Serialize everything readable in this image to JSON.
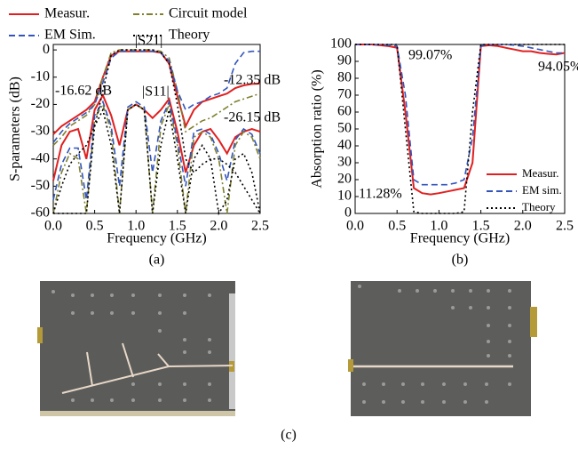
{
  "chart_data": [
    {
      "type": "line",
      "ylabel": "S-parameters (dB)",
      "xlabel": "Frequency (GHz)",
      "caption": "(a)",
      "x": [
        0,
        0.1,
        0.2,
        0.3,
        0.4,
        0.5,
        0.6,
        0.7,
        0.8,
        0.9,
        1.0,
        1.1,
        1.2,
        1.3,
        1.4,
        1.5,
        1.6,
        1.7,
        1.8,
        1.9,
        2.0,
        2.1,
        2.2,
        2.3,
        2.4,
        2.5
      ],
      "xlim": [
        0,
        2.5
      ],
      "ylim": [
        -60,
        2
      ],
      "xticks": [
        {
          "value": 0,
          "label": "0.0"
        },
        {
          "value": 0.5,
          "label": "0.5"
        },
        {
          "value": 1,
          "label": "1.0"
        },
        {
          "value": 1.5,
          "label": "1.5"
        },
        {
          "value": 2,
          "label": "2.0"
        },
        {
          "value": 2.5,
          "label": "2.5"
        }
      ],
      "yticks": [
        0,
        -10,
        -20,
        -30,
        -40,
        -50,
        -60
      ],
      "series": [
        {
          "name": "Measur.",
          "color": "#e02020",
          "dash": "solid",
          "values": [
            -31,
            -28,
            -26,
            -24,
            -22,
            -19,
            -10,
            -2,
            -0.5,
            -0.5,
            -0.5,
            -0.5,
            -0.5,
            -1,
            -5,
            -17,
            -28,
            -22,
            -19,
            -18,
            -17,
            -16,
            -14,
            -13,
            -12.5,
            -12.35
          ],
          "s11_values": [
            -48,
            -35,
            -30,
            -29,
            -40,
            -22,
            -16.62,
            -24,
            -35,
            -22,
            -20,
            -22,
            -25,
            -22,
            -18,
            -30,
            -45,
            -35,
            -30,
            -29,
            -33,
            -38,
            -32,
            -30,
            -29,
            -30
          ]
        },
        {
          "name": "Circuit model",
          "color": "#808030",
          "dash": "dashdot",
          "values": [
            -35,
            -32,
            -28,
            -26,
            -24,
            -20,
            -10,
            -1,
            0,
            0,
            0,
            0,
            0,
            -0.5,
            -3,
            -15,
            -30,
            -28,
            -26,
            -25,
            -23,
            -21,
            -19,
            -18,
            -17,
            -16
          ],
          "s11_values": [
            -60,
            -45,
            -38,
            -40,
            -60,
            -25,
            -20,
            -30,
            -60,
            -22,
            -20,
            -22,
            -60,
            -28,
            -20,
            -35,
            -60,
            -32,
            -30,
            -32,
            -40,
            -60,
            -35,
            -30,
            -32,
            -40
          ]
        },
        {
          "name": "EM Sim.",
          "color": "#3355bb",
          "dash": "dashed",
          "values": [
            -34,
            -30,
            -27,
            -25,
            -23,
            -20,
            -12,
            -3,
            -0.5,
            -0.5,
            -0.5,
            -0.5,
            -0.5,
            -1,
            -4,
            -15,
            -22,
            -20,
            -19,
            -17,
            -16,
            -14,
            -5,
            -1,
            -0.5,
            -0.5
          ],
          "s11_values": [
            -55,
            -42,
            -36,
            -36,
            -55,
            -24,
            -19,
            -28,
            -50,
            -21,
            -19,
            -21,
            -45,
            -26,
            -19,
            -33,
            -50,
            -30,
            -29,
            -31,
            -38,
            -48,
            -33,
            -29,
            -31,
            -38
          ]
        },
        {
          "name": "Theory",
          "color": "#000000",
          "dash": "dotted",
          "values": [
            -60,
            -50,
            -42,
            -38,
            -35,
            -28,
            -15,
            -2,
            0,
            0,
            0,
            0,
            0,
            -1,
            -5,
            -20,
            -40,
            -45,
            -42,
            -40,
            -40,
            -42,
            -45,
            -50,
            -55,
            -60
          ],
          "s11_values": [
            -60,
            -60,
            -60,
            -60,
            -60,
            -28,
            -22,
            -35,
            -60,
            -22,
            -20,
            -22,
            -60,
            -35,
            -22,
            -40,
            -60,
            -40,
            -35,
            -40,
            -60,
            -55,
            -40,
            -38,
            -45,
            -60
          ]
        }
      ],
      "annotations": [
        "|S21|",
        "|S11|",
        "-16.62 dB",
        "-12.35 dB",
        "-26.15 dB"
      ]
    },
    {
      "type": "line",
      "ylabel": "Absorption ratio (%)",
      "xlabel": "Frequency (GHz)",
      "caption": "(b)",
      "x": [
        0,
        0.1,
        0.2,
        0.3,
        0.4,
        0.5,
        0.6,
        0.7,
        0.8,
        0.9,
        1.0,
        1.1,
        1.2,
        1.3,
        1.4,
        1.5,
        1.6,
        1.7,
        1.8,
        1.9,
        2.0,
        2.1,
        2.2,
        2.3,
        2.4,
        2.5
      ],
      "xlim": [
        0,
        2.5
      ],
      "ylim": [
        0,
        100
      ],
      "xticks": [
        {
          "value": 0,
          "label": "0.0"
        },
        {
          "value": 0.5,
          "label": "0.5"
        },
        {
          "value": 1,
          "label": "1.0"
        },
        {
          "value": 1.5,
          "label": "1.5"
        },
        {
          "value": 2,
          "label": "2.0"
        },
        {
          "value": 2.5,
          "label": "2.5"
        }
      ],
      "yticks": [
        0,
        10,
        20,
        30,
        40,
        50,
        60,
        70,
        80,
        90,
        100
      ],
      "series": [
        {
          "name": "Measur.",
          "color": "#e02020",
          "dash": "solid",
          "values": [
            100,
            100,
            100,
            99.5,
            99,
            98,
            60,
            15,
            12,
            11.28,
            12,
            13,
            14,
            15,
            30,
            99,
            99.5,
            99.07,
            98,
            97,
            96,
            96,
            95,
            94.5,
            94.05,
            95
          ]
        },
        {
          "name": "EM sim.",
          "color": "#3355bb",
          "dash": "dashed",
          "values": [
            100,
            100,
            100,
            100,
            99.5,
            99,
            70,
            20,
            17,
            17,
            17,
            17,
            18,
            20,
            45,
            99,
            100,
            100,
            100,
            99.5,
            99,
            98,
            97,
            96,
            95,
            95
          ]
        },
        {
          "name": "Theory",
          "color": "#000000",
          "dash": "dotted",
          "values": [
            100,
            100,
            100,
            100,
            100,
            100,
            50,
            1,
            0,
            0,
            0,
            0,
            0,
            1,
            60,
            100,
            100,
            100,
            100,
            100,
            100,
            100,
            100,
            100,
            100,
            100
          ]
        }
      ],
      "annotations": [
        "99.07%",
        "94.05%",
        "11.28%"
      ]
    }
  ],
  "photo_caption": "(c)"
}
